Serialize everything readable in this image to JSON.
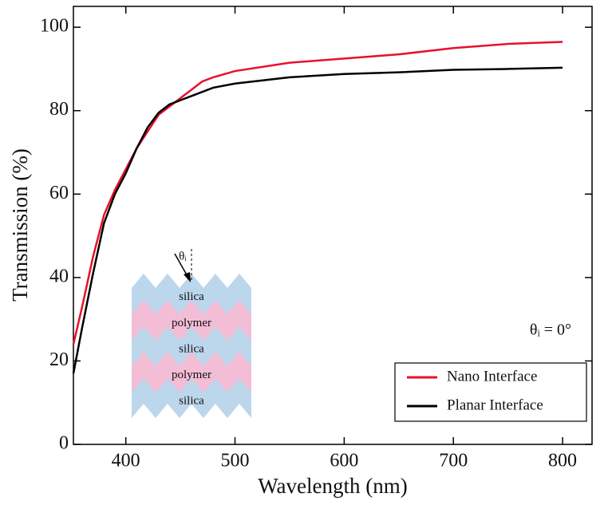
{
  "chart_data": {
    "type": "line",
    "xlabel": "Wavelength (nm)",
    "ylabel": "Transmission (%)",
    "xlim": [
      352,
      827
    ],
    "ylim": [
      0,
      105
    ],
    "xticks": [
      400,
      500,
      600,
      700,
      800
    ],
    "yticks": [
      0,
      20,
      40,
      60,
      80,
      100
    ],
    "legend": "lower right",
    "annotation": "θᵢ = 0°",
    "inset": {
      "angle_label": "θᵢ",
      "layers": [
        "silica",
        "polymer",
        "silica",
        "polymer",
        "silica"
      ]
    },
    "x": [
      352,
      360,
      370,
      380,
      390,
      400,
      410,
      420,
      430,
      440,
      450,
      460,
      470,
      480,
      500,
      550,
      600,
      650,
      700,
      750,
      800
    ],
    "series": [
      {
        "name": "Nano Interface",
        "color": "#e8102a",
        "values": [
          24,
          33,
          45,
          55,
          61,
          66,
          71,
          75,
          79,
          81,
          83,
          85,
          87,
          88,
          89.5,
          91.5,
          92.5,
          93.5,
          95,
          96,
          96.5
        ]
      },
      {
        "name": "Planar Interface",
        "color": "#000000",
        "values": [
          17,
          28,
          41,
          53,
          60,
          65,
          71,
          76,
          79.5,
          81.5,
          82.5,
          83.5,
          84.5,
          85.5,
          86.5,
          88,
          88.8,
          89.2,
          89.8,
          90,
          90.3
        ]
      }
    ]
  }
}
